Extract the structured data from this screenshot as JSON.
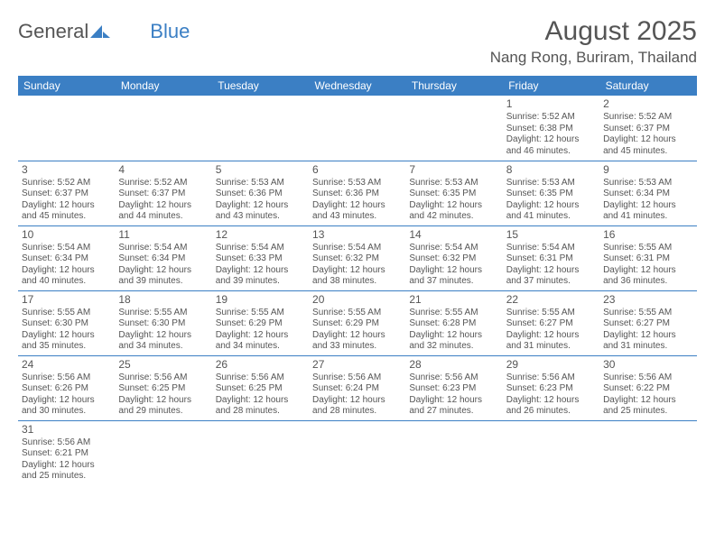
{
  "logo": {
    "word1": "General",
    "word2": "Blue"
  },
  "title": "August 2025",
  "location": "Nang Rong, Buriram, Thailand",
  "colors": {
    "header_bg": "#3b7fc4",
    "header_fg": "#ffffff",
    "text": "#555555",
    "border": "#3b7fc4",
    "page_bg": "#ffffff"
  },
  "typography": {
    "title_fontsize": 30,
    "location_fontsize": 17,
    "dayheader_fontsize": 12,
    "daynum_fontsize": 12,
    "cell_fontsize": 10
  },
  "dayHeaders": [
    "Sunday",
    "Monday",
    "Tuesday",
    "Wednesday",
    "Thursday",
    "Friday",
    "Saturday"
  ],
  "weeks": [
    [
      null,
      null,
      null,
      null,
      null,
      {
        "n": "1",
        "sr": "5:52 AM",
        "ss": "6:38 PM",
        "dl": "12 hours and 46 minutes."
      },
      {
        "n": "2",
        "sr": "5:52 AM",
        "ss": "6:37 PM",
        "dl": "12 hours and 45 minutes."
      }
    ],
    [
      {
        "n": "3",
        "sr": "5:52 AM",
        "ss": "6:37 PM",
        "dl": "12 hours and 45 minutes."
      },
      {
        "n": "4",
        "sr": "5:52 AM",
        "ss": "6:37 PM",
        "dl": "12 hours and 44 minutes."
      },
      {
        "n": "5",
        "sr": "5:53 AM",
        "ss": "6:36 PM",
        "dl": "12 hours and 43 minutes."
      },
      {
        "n": "6",
        "sr": "5:53 AM",
        "ss": "6:36 PM",
        "dl": "12 hours and 43 minutes."
      },
      {
        "n": "7",
        "sr": "5:53 AM",
        "ss": "6:35 PM",
        "dl": "12 hours and 42 minutes."
      },
      {
        "n": "8",
        "sr": "5:53 AM",
        "ss": "6:35 PM",
        "dl": "12 hours and 41 minutes."
      },
      {
        "n": "9",
        "sr": "5:53 AM",
        "ss": "6:34 PM",
        "dl": "12 hours and 41 minutes."
      }
    ],
    [
      {
        "n": "10",
        "sr": "5:54 AM",
        "ss": "6:34 PM",
        "dl": "12 hours and 40 minutes."
      },
      {
        "n": "11",
        "sr": "5:54 AM",
        "ss": "6:34 PM",
        "dl": "12 hours and 39 minutes."
      },
      {
        "n": "12",
        "sr": "5:54 AM",
        "ss": "6:33 PM",
        "dl": "12 hours and 39 minutes."
      },
      {
        "n": "13",
        "sr": "5:54 AM",
        "ss": "6:32 PM",
        "dl": "12 hours and 38 minutes."
      },
      {
        "n": "14",
        "sr": "5:54 AM",
        "ss": "6:32 PM",
        "dl": "12 hours and 37 minutes."
      },
      {
        "n": "15",
        "sr": "5:54 AM",
        "ss": "6:31 PM",
        "dl": "12 hours and 37 minutes."
      },
      {
        "n": "16",
        "sr": "5:55 AM",
        "ss": "6:31 PM",
        "dl": "12 hours and 36 minutes."
      }
    ],
    [
      {
        "n": "17",
        "sr": "5:55 AM",
        "ss": "6:30 PM",
        "dl": "12 hours and 35 minutes."
      },
      {
        "n": "18",
        "sr": "5:55 AM",
        "ss": "6:30 PM",
        "dl": "12 hours and 34 minutes."
      },
      {
        "n": "19",
        "sr": "5:55 AM",
        "ss": "6:29 PM",
        "dl": "12 hours and 34 minutes."
      },
      {
        "n": "20",
        "sr": "5:55 AM",
        "ss": "6:29 PM",
        "dl": "12 hours and 33 minutes."
      },
      {
        "n": "21",
        "sr": "5:55 AM",
        "ss": "6:28 PM",
        "dl": "12 hours and 32 minutes."
      },
      {
        "n": "22",
        "sr": "5:55 AM",
        "ss": "6:27 PM",
        "dl": "12 hours and 31 minutes."
      },
      {
        "n": "23",
        "sr": "5:55 AM",
        "ss": "6:27 PM",
        "dl": "12 hours and 31 minutes."
      }
    ],
    [
      {
        "n": "24",
        "sr": "5:56 AM",
        "ss": "6:26 PM",
        "dl": "12 hours and 30 minutes."
      },
      {
        "n": "25",
        "sr": "5:56 AM",
        "ss": "6:25 PM",
        "dl": "12 hours and 29 minutes."
      },
      {
        "n": "26",
        "sr": "5:56 AM",
        "ss": "6:25 PM",
        "dl": "12 hours and 28 minutes."
      },
      {
        "n": "27",
        "sr": "5:56 AM",
        "ss": "6:24 PM",
        "dl": "12 hours and 28 minutes."
      },
      {
        "n": "28",
        "sr": "5:56 AM",
        "ss": "6:23 PM",
        "dl": "12 hours and 27 minutes."
      },
      {
        "n": "29",
        "sr": "5:56 AM",
        "ss": "6:23 PM",
        "dl": "12 hours and 26 minutes."
      },
      {
        "n": "30",
        "sr": "5:56 AM",
        "ss": "6:22 PM",
        "dl": "12 hours and 25 minutes."
      }
    ],
    [
      {
        "n": "31",
        "sr": "5:56 AM",
        "ss": "6:21 PM",
        "dl": "12 hours and 25 minutes."
      },
      null,
      null,
      null,
      null,
      null,
      null
    ]
  ],
  "labels": {
    "sunrise": "Sunrise:",
    "sunset": "Sunset:",
    "daylight": "Daylight:"
  }
}
